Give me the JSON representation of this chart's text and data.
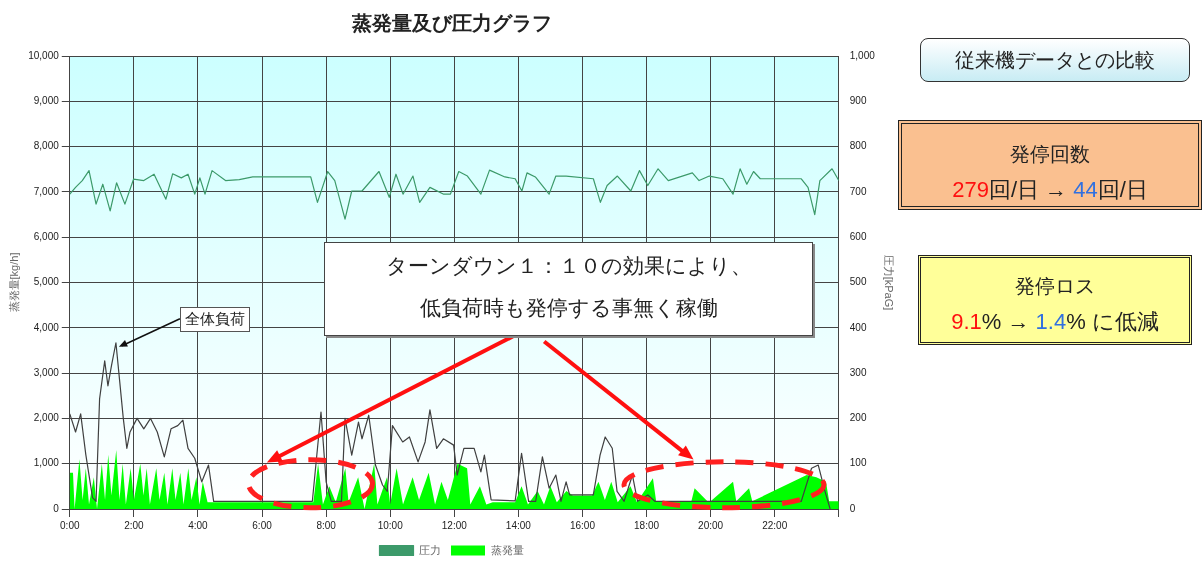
{
  "chart_data": {
    "type": "line",
    "title": "蒸発量及び圧力グラフ",
    "ylabel": "蒸発量[kg/h]",
    "y2label": "圧力[kPaG]",
    "xlim": [
      0,
      24
    ],
    "xticks": [
      {
        "value": 0,
        "label": "0:00"
      },
      {
        "value": 2,
        "label": "2:00"
      },
      {
        "value": 4,
        "label": "4:00"
      },
      {
        "value": 6,
        "label": "6:00"
      },
      {
        "value": 8,
        "label": "8:00"
      },
      {
        "value": 10,
        "label": "10:00"
      },
      {
        "value": 12,
        "label": "12:00"
      },
      {
        "value": 14,
        "label": "14:00"
      },
      {
        "value": 16,
        "label": "16:00"
      },
      {
        "value": 18,
        "label": "18:00"
      },
      {
        "value": 20,
        "label": "20:00"
      },
      {
        "value": 22,
        "label": "22:00"
      },
      {
        "value": 24,
        "label": null
      }
    ],
    "ylim": [
      0,
      10000
    ],
    "yticks": [
      0,
      {
        "value": 1000,
        "label": "1,000"
      },
      {
        "value": 2000,
        "label": "2,000"
      },
      {
        "value": 3000,
        "label": "3,000"
      },
      {
        "value": 4000,
        "label": "4,000"
      },
      {
        "value": 5000,
        "label": "5,000"
      },
      {
        "value": 6000,
        "label": "6,000"
      },
      {
        "value": 7000,
        "label": "7,000"
      },
      {
        "value": 8000,
        "label": "8,000"
      },
      {
        "value": 9000,
        "label": "9,000"
      },
      {
        "value": 10000,
        "label": "10,000"
      }
    ],
    "y2lim": [
      0,
      1000
    ],
    "y2ticks": [
      0,
      100,
      200,
      300,
      400,
      500,
      600,
      700,
      800,
      900,
      {
        "value": 1000,
        "label": "1,000"
      }
    ],
    "grid": true,
    "legend": "bottom",
    "marker": "none",
    "line_style": "solid",
    "series": [
      {
        "name": "蒸発量",
        "type": "area",
        "color": "#00ff00",
        "x": [
          0,
          0.1,
          0.15,
          0.3,
          0.4,
          0.5,
          0.6,
          0.75,
          0.85,
          1.0,
          1.1,
          1.2,
          1.3,
          1.45,
          1.55,
          1.65,
          1.75,
          1.9,
          2.0,
          2.2,
          2.3,
          2.4,
          2.5,
          2.7,
          2.8,
          2.95,
          3.05,
          3.2,
          3.3,
          3.45,
          3.55,
          3.7,
          3.8,
          3.95,
          4.05,
          4.15,
          4.3,
          7.6,
          7.75,
          7.9,
          8.1,
          8.3,
          8.6,
          8.7,
          9.0,
          9.2,
          9.5,
          9.6,
          9.9,
          10.0,
          10.2,
          10.4,
          10.7,
          10.9,
          11.2,
          11.4,
          11.6,
          11.8,
          12.1,
          12.4,
          12.5,
          12.8,
          13.0,
          13.2,
          13.9,
          14.1,
          14.3,
          14.6,
          14.8,
          15.0,
          15.2,
          15.5,
          15.7,
          16.3,
          16.5,
          16.7,
          16.9,
          17.1,
          17.5,
          17.7,
          18.2,
          18.3,
          19.4,
          19.5,
          19.9,
          20.0,
          20.7,
          20.8,
          21.2,
          21.3,
          23.0,
          23.3,
          23.6,
          23.7,
          24
        ],
        "values": [
          800,
          800,
          0,
          1100,
          200,
          900,
          100,
          700,
          0,
          1000,
          200,
          1200,
          300,
          1300,
          200,
          1000,
          100,
          900,
          200,
          1000,
          300,
          900,
          100,
          900,
          200,
          800,
          100,
          900,
          200,
          800,
          100,
          900,
          200,
          700,
          100,
          600,
          150,
          150,
          1000,
          100,
          500,
          150,
          900,
          150,
          700,
          0,
          1000,
          100,
          700,
          100,
          900,
          100,
          700,
          200,
          800,
          100,
          600,
          200,
          1000,
          900,
          100,
          500,
          100,
          150,
          150,
          500,
          100,
          400,
          100,
          500,
          150,
          400,
          300,
          300,
          600,
          200,
          600,
          150,
          500,
          150,
          680,
          170,
          170,
          460,
          170,
          170,
          600,
          170,
          460,
          170,
          750,
          700,
          600,
          170,
          170
        ]
      },
      {
        "name": "圧力",
        "type": "line",
        "axis": "y2",
        "color": "#3c9a6a",
        "x": [
          0,
          0.18,
          0.39,
          0.6,
          0.82,
          1.03,
          1.26,
          1.46,
          1.72,
          1.99,
          2.31,
          2.63,
          3.0,
          3.21,
          3.48,
          3.69,
          3.9,
          4.06,
          4.22,
          4.44,
          4.86,
          5.29,
          5.71,
          7.52,
          7.73,
          8.05,
          8.27,
          8.59,
          8.8,
          9.12,
          9.65,
          9.97,
          10.18,
          10.4,
          10.71,
          10.92,
          11.24,
          11.67,
          11.88,
          12.14,
          12.41,
          12.83,
          13.1,
          13.58,
          13.9,
          14.11,
          14.27,
          14.53,
          14.96,
          15.17,
          15.49,
          16.34,
          16.56,
          16.77,
          17.09,
          17.51,
          17.78,
          18.04,
          18.36,
          18.68,
          19.43,
          19.64,
          19.96,
          20.38,
          20.7,
          20.92,
          21.13,
          21.34,
          21.55,
          22.83,
          23.04,
          23.25,
          23.41,
          23.79,
          24
        ],
        "values": [
          695,
          710,
          725,
          747,
          673,
          717,
          658,
          720,
          673,
          728,
          725,
          739,
          684,
          740,
          731,
          739,
          695,
          731,
          695,
          747,
          725,
          727,
          733,
          733,
          677,
          745,
          725,
          640,
          702,
          702,
          745,
          688,
          739,
          695,
          735,
          677,
          710,
          695,
          695,
          745,
          735,
          695,
          748,
          733,
          729,
          702,
          742,
          733,
          695,
          735,
          735,
          729,
          677,
          714,
          735,
          702,
          747,
          714,
          751,
          725,
          742,
          725,
          735,
          729,
          695,
          751,
          717,
          745,
          729,
          729,
          710,
          650,
          725,
          751,
          725
        ]
      },
      {
        "color": "#404040",
        "x": [
          0,
          0.18,
          0.34,
          0.5,
          0.71,
          0.82,
          0.93,
          1.09,
          1.19,
          1.3,
          1.44,
          1.56,
          1.67,
          1.78,
          1.88,
          2.1,
          2.31,
          2.52,
          2.73,
          2.95,
          3.16,
          3.37,
          3.53,
          3.69,
          3.9,
          4.12,
          4.33,
          4.49,
          4.86,
          7.57,
          7.84,
          8.0,
          8.16,
          8.48,
          8.59,
          8.8,
          9.01,
          9.12,
          9.33,
          9.54,
          9.76,
          9.91,
          10.07,
          10.39,
          10.6,
          10.87,
          11.09,
          11.24,
          11.45,
          11.66,
          11.98,
          12.09,
          12.3,
          12.62,
          12.83,
          12.94,
          13.15,
          13.9,
          14.1,
          14.32,
          14.54,
          14.75,
          14.96,
          15.17,
          15.33,
          15.49,
          15.6,
          16.34,
          16.55,
          16.71,
          16.93,
          17.08,
          17.3,
          17.56,
          17.72,
          18.04,
          18.26,
          20.38,
          22.83,
          23.15,
          23.36,
          23.57,
          23.73
        ],
        "values": [
          2100,
          1700,
          2100,
          1200,
          250,
          170,
          2430,
          3270,
          2720,
          3160,
          3670,
          2800,
          2000,
          1340,
          1700,
          2000,
          1770,
          2000,
          1700,
          1150,
          1770,
          1840,
          1960,
          1340,
          1120,
          600,
          970,
          170,
          170,
          170,
          2140,
          600,
          170,
          170,
          2000,
          1190,
          1920,
          1550,
          2070,
          970,
          530,
          390,
          1840,
          1480,
          1590,
          1040,
          1480,
          2190,
          1340,
          1550,
          1410,
          750,
          1340,
          1340,
          820,
          1190,
          200,
          180,
          1230,
          170,
          170,
          1150,
          460,
          750,
          170,
          600,
          310,
          310,
          1190,
          1590,
          1340,
          390,
          170,
          750,
          170,
          310,
          170,
          170,
          170,
          900,
          970,
          390,
          0
        ]
      }
    ],
    "annotations": [
      {
        "text": "全体負荷",
        "x": 1.44,
        "y": 3670
      },
      "ターンダウン１：１０の効果により、",
      "低負荷時も発停する事無く稼働",
      "従来機データとの比較",
      "発停回数",
      "279回/日 → 44回/日",
      "発停ロス",
      "9.1% → 1.4% に低減"
    ]
  }
}
